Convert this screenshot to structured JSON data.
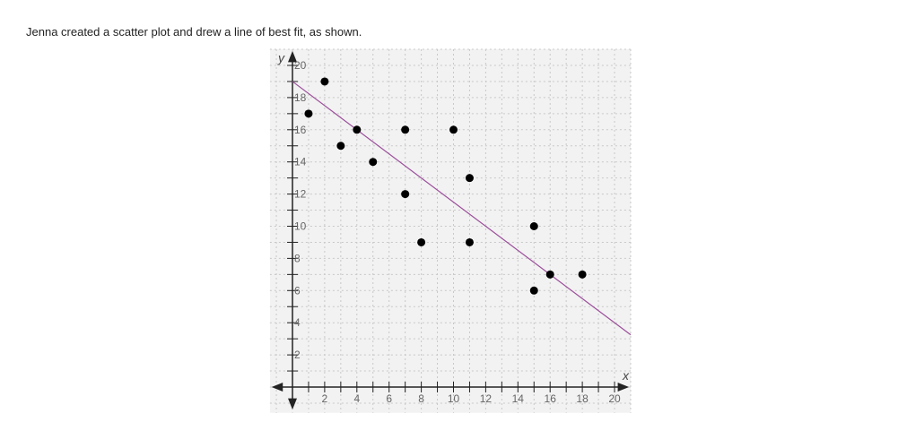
{
  "question": {
    "text": "Jenna created a scatter plot and drew a line of best fit, as shown."
  },
  "chart_data": {
    "type": "scatter",
    "xlabel": "x",
    "ylabel": "y",
    "xlim": [
      -1.4,
      21
    ],
    "ylim": [
      -1.6,
      21
    ],
    "xticks": [
      2,
      4,
      6,
      8,
      10,
      12,
      14,
      16,
      18,
      20
    ],
    "yticks": [
      2,
      4,
      6,
      8,
      10,
      12,
      14,
      16,
      18,
      20
    ],
    "grid": true,
    "points": [
      {
        "x": 1,
        "y": 17
      },
      {
        "x": 2,
        "y": 19
      },
      {
        "x": 3,
        "y": 15
      },
      {
        "x": 4,
        "y": 16
      },
      {
        "x": 5,
        "y": 14
      },
      {
        "x": 7,
        "y": 16
      },
      {
        "x": 7,
        "y": 12
      },
      {
        "x": 8,
        "y": 9
      },
      {
        "x": 10,
        "y": 16
      },
      {
        "x": 11,
        "y": 13
      },
      {
        "x": 11,
        "y": 9
      },
      {
        "x": 15,
        "y": 10
      },
      {
        "x": 15,
        "y": 6
      },
      {
        "x": 16,
        "y": 7
      },
      {
        "x": 18,
        "y": 7
      }
    ],
    "best_fit_line": {
      "slope": -0.75,
      "intercept": 19,
      "x_range": [
        0,
        21
      ]
    },
    "colors": {
      "points": "#000000",
      "line": "#9b4f9b",
      "background": "#f2f2f2",
      "grid": "#c8c8c8"
    }
  }
}
